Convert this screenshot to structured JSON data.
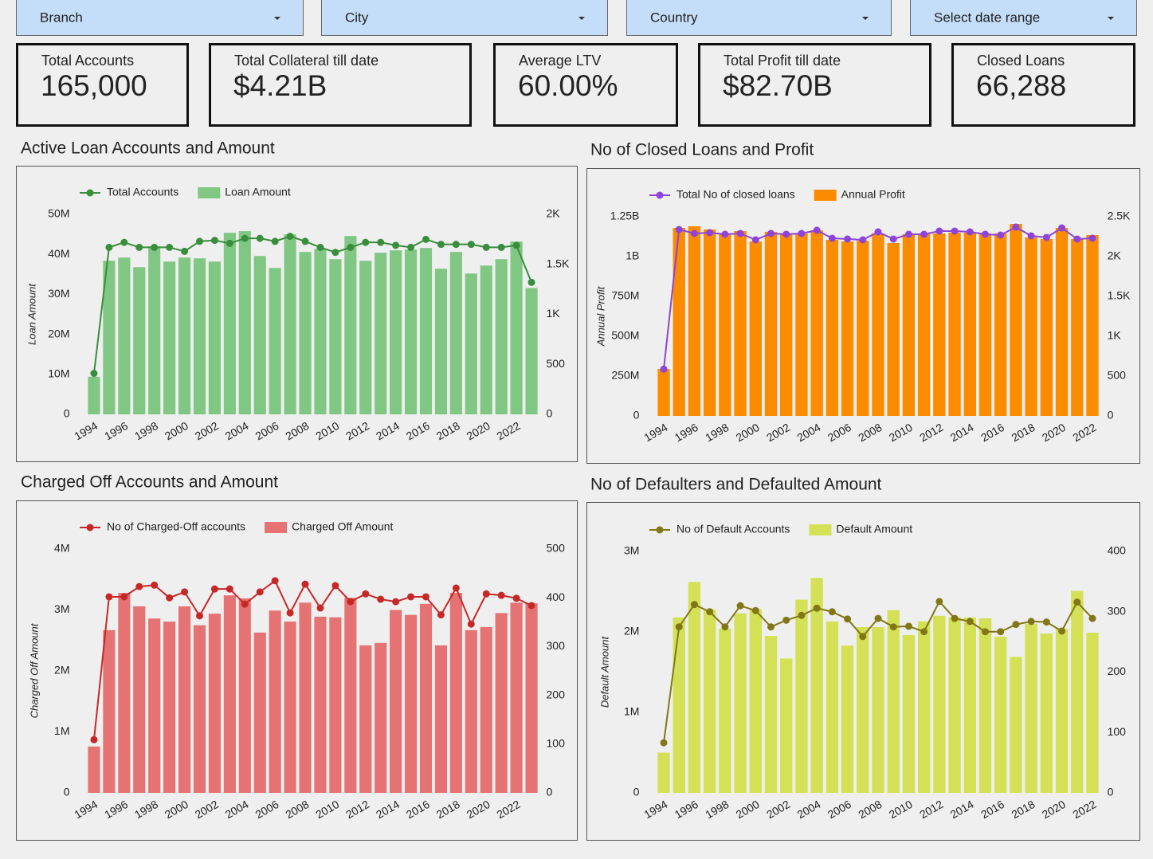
{
  "filters": [
    "Branch",
    "City",
    "Country",
    "Select date range"
  ],
  "kpis": [
    {
      "label": "Total Accounts",
      "value": "165,000"
    },
    {
      "label": "Total Collateral till date",
      "value": "$4.21B"
    },
    {
      "label": "Average LTV",
      "value": "60.00%"
    },
    {
      "label": "Total Profit till date",
      "value": "$82.70B"
    },
    {
      "label": "Closed Loans",
      "value": "66,288"
    }
  ],
  "chart_data": [
    {
      "type": "bar",
      "title": "Active Loan Accounts and Amount",
      "y_label": "Loan Amount",
      "categories": [
        "1994",
        null,
        "1996",
        null,
        "1998",
        null,
        "2000",
        null,
        "2002",
        null,
        "2004",
        null,
        "2006",
        null,
        "2008",
        null,
        "2010",
        null,
        "2012",
        null,
        "2014",
        null,
        "2016",
        null,
        "2018",
        null,
        "2020",
        null,
        "2022",
        null
      ],
      "series": [
        {
          "name": "Total Accounts",
          "type": "line",
          "axis": "y2",
          "color": "#388e3c",
          "values": [
            410,
            1670,
            1720,
            1670,
            1670,
            1670,
            1630,
            1730,
            1740,
            1710,
            1760,
            1760,
            1730,
            1780,
            1730,
            1670,
            1620,
            1670,
            1720,
            1720,
            1690,
            1670,
            1750,
            1700,
            1700,
            1700,
            1670,
            1670,
            1690,
            1320
          ]
        },
        {
          "name": "Loan Amount",
          "type": "bar",
          "color": "#81c784",
          "values": [
            9400000,
            38400000,
            39200000,
            36800000,
            42000000,
            38200000,
            39200000,
            39000000,
            38200000,
            45400000,
            45800000,
            39600000,
            36600000,
            45000000,
            40600000,
            41400000,
            38800000,
            44600000,
            38400000,
            40400000,
            41000000,
            41200000,
            41600000,
            36400000,
            40600000,
            35200000,
            37200000,
            38800000,
            43200000,
            31600000
          ]
        }
      ],
      "ylim": [
        0,
        50000000
      ],
      "yticks": [
        0,
        {
          "value": 10000000,
          "label": "10M"
        },
        {
          "value": 20000000,
          "label": "20M"
        },
        {
          "value": 30000000,
          "label": "30M"
        },
        {
          "value": 40000000,
          "label": "40M"
        },
        {
          "value": 50000000,
          "label": "50M"
        }
      ],
      "y2lim": [
        0,
        2000
      ],
      "y2ticks": [
        0,
        500,
        {
          "value": 1000,
          "label": "1K"
        },
        {
          "value": 1500,
          "label": "1.5K"
        },
        {
          "value": 2000,
          "label": "2K"
        }
      ]
    },
    {
      "type": "bar",
      "title": "No of Closed Loans and Profit",
      "y_label": "Annual Profit",
      "categories": [
        "1994",
        null,
        "1996",
        null,
        "1998",
        null,
        "2000",
        null,
        "2002",
        null,
        "2004",
        null,
        "2006",
        null,
        "2008",
        null,
        "2010",
        null,
        "2012",
        null,
        "2014",
        null,
        "2016",
        null,
        "2018",
        null,
        "2020",
        null,
        "2022"
      ],
      "series": [
        {
          "name": "Total No of closed loans",
          "type": "line",
          "axis": "y2",
          "color": "#8e44d8",
          "values": [
            588,
            2340,
            2290,
            2300,
            2280,
            2290,
            2210,
            2290,
            2280,
            2290,
            2330,
            2230,
            2220,
            2210,
            2310,
            2220,
            2280,
            2280,
            2320,
            2320,
            2310,
            2280,
            2270,
            2370,
            2260,
            2240,
            2360,
            2220,
            2230
          ]
        },
        {
          "name": "Annual Profit",
          "type": "bar",
          "color": "#fb8c00",
          "values": [
            294000000,
            1180000000,
            1190000000,
            1170000000,
            1145000000,
            1160000000,
            1095000000,
            1155000000,
            1145000000,
            1145000000,
            1165000000,
            1105000000,
            1095000000,
            1100000000,
            1145000000,
            1085000000,
            1140000000,
            1145000000,
            1145000000,
            1150000000,
            1150000000,
            1145000000,
            1145000000,
            1205000000,
            1120000000,
            1110000000,
            1180000000,
            1110000000,
            1135000000
          ]
        }
      ],
      "ylim": [
        0,
        1250000000
      ],
      "yticks": [
        0,
        {
          "value": 250000000,
          "label": "250M"
        },
        {
          "value": 500000000,
          "label": "500M"
        },
        {
          "value": 750000000,
          "label": "750M"
        },
        {
          "value": 1000000000,
          "label": "1B"
        },
        {
          "value": 1250000000,
          "label": "1.25B"
        }
      ],
      "y2lim": [
        0,
        2500
      ],
      "y2ticks": [
        0,
        500,
        {
          "value": 1000,
          "label": "1K"
        },
        {
          "value": 1500,
          "label": "1.5K"
        },
        {
          "value": 2000,
          "label": "2K"
        },
        {
          "value": 2500,
          "label": "2.5K"
        }
      ]
    },
    {
      "type": "bar",
      "title": "Charged Off Accounts and Amount",
      "y_label": "Charged Off Amount",
      "categories": [
        "1994",
        null,
        "1996",
        null,
        "1998",
        null,
        "2000",
        null,
        "2002",
        null,
        "2004",
        null,
        "2006",
        null,
        "2008",
        null,
        "2010",
        null,
        "2012",
        null,
        "2014",
        null,
        "2016",
        null,
        "2018",
        null,
        "2020",
        null,
        "2022",
        null
      ],
      "series": [
        {
          "name": "No of Charged-Off accounts",
          "type": "line",
          "axis": "y2",
          "color": "#c62828",
          "values": [
            109,
            402,
            402,
            423,
            426,
            400,
            412,
            363,
            418,
            418,
            387,
            412,
            435,
            369,
            428,
            379,
            425,
            392,
            408,
            397,
            392,
            402,
            402,
            365,
            420,
            346,
            408,
            405,
            399,
            384
          ]
        },
        {
          "name": "Charged Off Amount",
          "type": "bar",
          "color": "#e57373",
          "values": [
            760000,
            2670000,
            3280000,
            3060000,
            2860000,
            2810000,
            3060000,
            2750000,
            2940000,
            3240000,
            3190000,
            2630000,
            2990000,
            2810000,
            3120000,
            2890000,
            2880000,
            3200000,
            2420000,
            2460000,
            3000000,
            2920000,
            3100000,
            2420000,
            3280000,
            2670000,
            2720000,
            2950000,
            3120000,
            3110000
          ]
        }
      ],
      "ylim": [
        0,
        4000000
      ],
      "yticks": [
        0,
        {
          "value": 1000000,
          "label": "1M"
        },
        {
          "value": 2000000,
          "label": "2M"
        },
        {
          "value": 3000000,
          "label": "3M"
        },
        {
          "value": 4000000,
          "label": "4M"
        }
      ],
      "y2lim": [
        0,
        500
      ],
      "y2ticks": [
        0,
        100,
        200,
        300,
        400,
        500
      ]
    },
    {
      "type": "bar",
      "title": "No of Defaulters and Defaulted Amount",
      "y_label": "Default Amount",
      "categories": [
        "1994",
        null,
        "1996",
        null,
        "1998",
        null,
        "2000",
        null,
        "2002",
        null,
        "2004",
        null,
        "2006",
        null,
        "2008",
        null,
        "2010",
        null,
        "2012",
        null,
        "2014",
        null,
        "2016",
        null,
        "2018",
        null,
        "2020",
        null,
        "2022"
      ],
      "series": [
        {
          "name": "No of Default Accounts",
          "type": "line",
          "axis": "y2",
          "color": "#827717",
          "values": [
            83,
            275,
            312,
            300,
            275,
            310,
            302,
            275,
            286,
            294,
            306,
            300,
            288,
            259,
            289,
            275,
            276,
            267,
            317,
            289,
            284,
            267,
            267,
            279,
            284,
            283,
            268,
            316,
            289
          ]
        },
        {
          "name": "Default Amount",
          "type": "bar",
          "color": "#d4e157",
          "values": [
            500000,
            2180000,
            2620000,
            2280000,
            2040000,
            2230000,
            2280000,
            1950000,
            1670000,
            2400000,
            2670000,
            2130000,
            1830000,
            2060000,
            2060000,
            2270000,
            1960000,
            2130000,
            2200000,
            2180000,
            2180000,
            2170000,
            1940000,
            1690000,
            2100000,
            1980000,
            2040000,
            2510000,
            1990000
          ]
        }
      ],
      "ylim": [
        0,
        3000000
      ],
      "yticks": [
        0,
        {
          "value": 1000000,
          "label": "1M"
        },
        {
          "value": 2000000,
          "label": "2M"
        },
        {
          "value": 3000000,
          "label": "3M"
        }
      ],
      "y2lim": [
        0,
        400
      ],
      "y2ticks": [
        0,
        100,
        200,
        300,
        400
      ]
    }
  ]
}
